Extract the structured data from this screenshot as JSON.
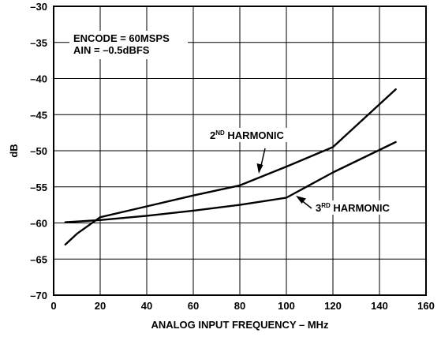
{
  "chart_data": {
    "type": "line",
    "title": "",
    "xlabel": "ANALOG INPUT FREQUENCY – MHz",
    "ylabel": "dB",
    "xlim": [
      0,
      160
    ],
    "ylim": [
      -70,
      -30
    ],
    "x_ticks": [
      "0",
      "20",
      "40",
      "60",
      "80",
      "100",
      "120",
      "140",
      "160"
    ],
    "y_ticks": [
      "–30",
      "–35",
      "–40",
      "–45",
      "–50",
      "–55",
      "–60",
      "–65",
      "–70"
    ],
    "grid": true,
    "annotations": {
      "conditions_line1": "ENCODE = 60MSPS",
      "conditions_line2": "AIN = –0.5dBFS",
      "harmonic2_num": "2",
      "harmonic2_sup": "ND",
      "harmonic2_text": " HARMONIC",
      "harmonic3_num": "3",
      "harmonic3_sup": "RD",
      "harmonic3_text": " HARMONIC"
    },
    "series": [
      {
        "name": "2ND HARMONIC",
        "x": [
          5,
          10,
          20,
          40,
          60,
          80,
          100,
          120,
          147
        ],
        "y": [
          -63,
          -61.5,
          -59.2,
          -57.7,
          -56.2,
          -54.8,
          -52.2,
          -49.5,
          -41.5
        ]
      },
      {
        "name": "3RD HARMONIC",
        "x": [
          5,
          10,
          20,
          40,
          60,
          80,
          100,
          120,
          147
        ],
        "y": [
          -59.9,
          -59.8,
          -59.6,
          -59,
          -58.3,
          -57.5,
          -56.5,
          -53,
          -48.8
        ]
      }
    ]
  }
}
